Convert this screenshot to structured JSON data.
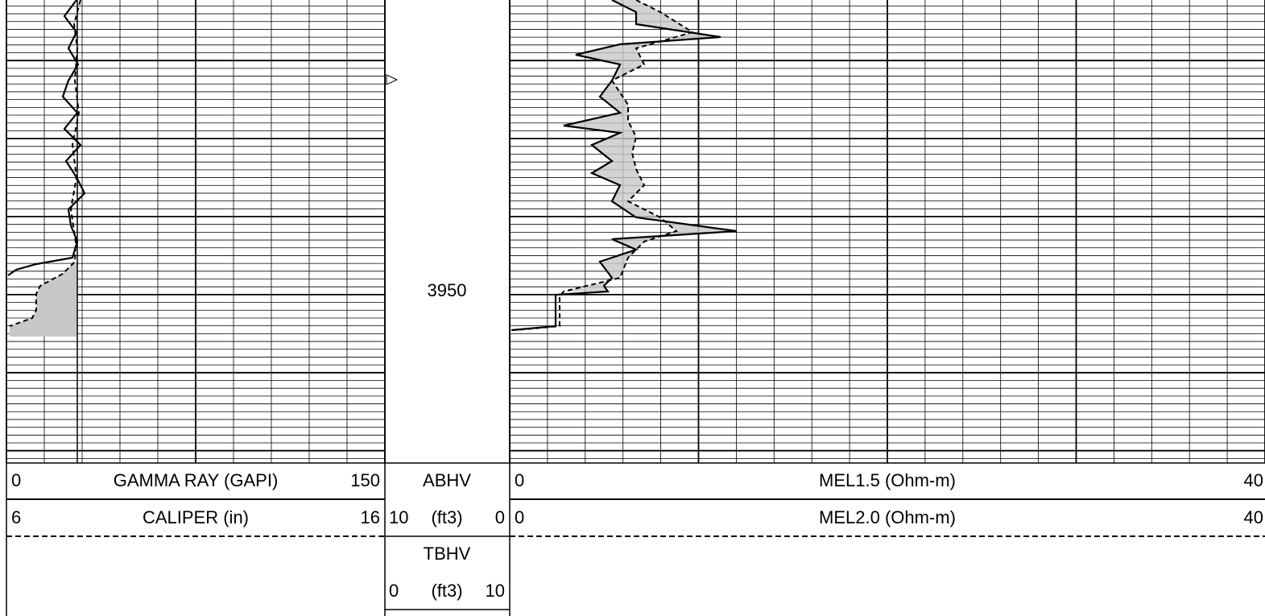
{
  "track1": {
    "curves": [
      {
        "min": "0",
        "name": "GAMMA RAY (GAPI)",
        "max": "150"
      },
      {
        "min": "6",
        "name": "CALIPER (in)",
        "max": "16"
      }
    ]
  },
  "depth_track": {
    "depth": "3950",
    "abhv": {
      "name": "ABHV",
      "left": "10",
      "unit": "(ft3)",
      "right": "0"
    },
    "tbhv": {
      "name": "TBHV",
      "left": "0",
      "unit": "(ft3)",
      "right": "10"
    }
  },
  "track2": {
    "curves": [
      {
        "min": "0",
        "name": "MEL1.5 (Ohm-m)",
        "max": "40"
      },
      {
        "min": "0",
        "name": "MEL2.0 (Ohm-m)",
        "max": "40"
      }
    ]
  }
}
